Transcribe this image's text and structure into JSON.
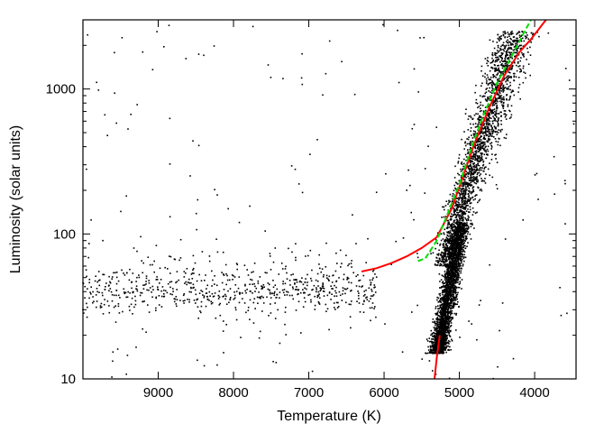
{
  "chart_data": {
    "type": "scatter",
    "title": "",
    "xlabel": "Temperature (K)",
    "ylabel": "Luminosity (solar units)",
    "xlim": [
      10000,
      3450
    ],
    "x_reversed": true,
    "ylim": [
      10,
      3000
    ],
    "yscale": "log",
    "grid": false,
    "legend": "none",
    "x_ticks": [
      {
        "value": 9000,
        "label": "9000"
      },
      {
        "value": 8000,
        "label": "8000"
      },
      {
        "value": 7000,
        "label": "7000"
      },
      {
        "value": 6000,
        "label": "6000"
      },
      {
        "value": 5000,
        "label": "5000"
      },
      {
        "value": 4000,
        "label": "4000"
      }
    ],
    "y_ticks": [
      {
        "value": 10,
        "label": "10"
      },
      {
        "value": 100,
        "label": "100"
      },
      {
        "value": 1000,
        "label": "1000"
      }
    ],
    "colors": {
      "points": "#000000",
      "red_track": "#ff0000",
      "green_track": "#00dd00"
    },
    "series": [
      {
        "style": "line",
        "color": "#ff0000",
        "points": [
          [
            6300,
            55
          ],
          [
            6100,
            58
          ],
          [
            5900,
            63
          ],
          [
            5700,
            70
          ],
          [
            5500,
            80
          ],
          [
            5300,
            95
          ],
          [
            5100,
            150
          ],
          [
            4950,
            250
          ],
          [
            4800,
            420
          ],
          [
            4600,
            750
          ],
          [
            4400,
            1250
          ],
          [
            4200,
            1800
          ],
          [
            4050,
            2200
          ],
          [
            3850,
            3000
          ]
        ]
      },
      {
        "style": "line",
        "color": "#ff0000",
        "points": [
          [
            5330,
            10
          ],
          [
            5300,
            14
          ],
          [
            5260,
            20
          ]
        ]
      },
      {
        "style": "dashed-line",
        "color": "#00dd00",
        "points": [
          [
            5550,
            65
          ],
          [
            5450,
            68
          ],
          [
            5300,
            90
          ],
          [
            5150,
            140
          ],
          [
            5000,
            220
          ],
          [
            4850,
            380
          ],
          [
            4700,
            620
          ],
          [
            4500,
            1100
          ],
          [
            4300,
            1700
          ],
          [
            4150,
            2400
          ],
          [
            4050,
            3000
          ]
        ]
      },
      {
        "style": "points",
        "color": "#000000",
        "groups": [
          {
            "name": "horizontal-branch",
            "t_min": 6100,
            "t_max": 10000,
            "l_center": 42,
            "l_spread": 0.08,
            "count": 700
          },
          {
            "name": "dense-giant-base",
            "t_min": 4950,
            "t_max": 5400,
            "l_min": 15,
            "l_max": 120,
            "count": 2600
          },
          {
            "name": "giant-branch",
            "t_min": 4000,
            "t_max": 5300,
            "l_min": 60,
            "l_max": 2500,
            "count": 2000
          },
          {
            "name": "field-scatter",
            "t_min": 3450,
            "t_max": 10000,
            "l_min": 10,
            "l_max": 3000,
            "count": 180
          }
        ]
      }
    ]
  }
}
